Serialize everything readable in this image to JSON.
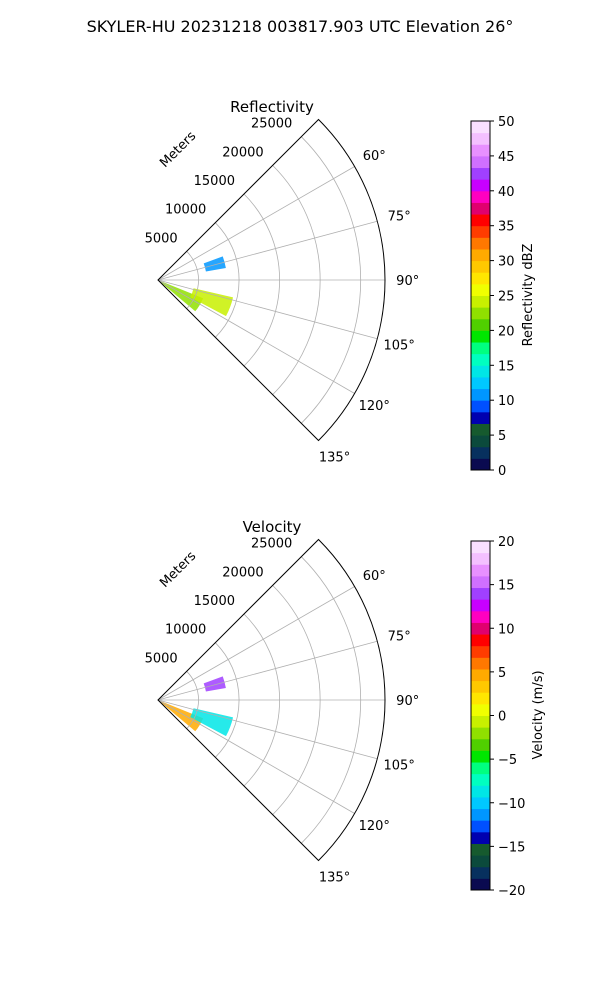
{
  "figure": {
    "suptitle": "SKYLER-HU  20231218  003817.903 UTC Elevation 26°"
  },
  "chart_data": [
    {
      "type": "polar-sector",
      "title": "Reflectivity",
      "radial_label": "Meters",
      "theta_range_deg": [
        45,
        135
      ],
      "r_range": [
        0,
        28000
      ],
      "r_ticks": [
        5000,
        10000,
        15000,
        20000,
        25000
      ],
      "r_tick_labels": [
        "5000",
        "10000",
        "15000",
        "20000",
        "25000"
      ],
      "theta_ticks": [
        60,
        75,
        90,
        105,
        120,
        135
      ],
      "theta_tick_labels": [
        "60°",
        "75°",
        "90°",
        "105°",
        "120°",
        "135°"
      ],
      "grid": true,
      "colorbar": {
        "label": "Reflectivity dBZ",
        "range": [
          0,
          50
        ],
        "ticks": [
          0,
          5,
          10,
          15,
          20,
          25,
          30,
          35,
          40,
          45,
          50
        ],
        "tick_labels": [
          "0",
          "5",
          "10",
          "15",
          "20",
          "25",
          "30",
          "35",
          "40",
          "45",
          "50"
        ],
        "colors": [
          "#0a0a50",
          "#07305e",
          "#0b4a3c",
          "#165a2e",
          "#0000b0",
          "#0050ff",
          "#0096ff",
          "#00c8ff",
          "#00e6e6",
          "#00ffc0",
          "#00ff80",
          "#00e600",
          "#50d000",
          "#90e000",
          "#c8f000",
          "#f0ff00",
          "#ffe600",
          "#ffc800",
          "#ffaa00",
          "#ff7800",
          "#ff3c00",
          "#ff0000",
          "#e0006e",
          "#ff00c0",
          "#c800ff",
          "#a040ff",
          "#d070ff",
          "#e890ff",
          "#f4c0ff",
          "#fae0ff"
        ]
      },
      "echo_regions": [
        {
          "theta_range": [
            112,
            130
          ],
          "r_range": [
            400,
            6000
          ],
          "value": 22
        },
        {
          "theta_range": [
            103,
            118
          ],
          "r_range": [
            4500,
            9500
          ],
          "value": 24
        },
        {
          "theta_range": [
            70,
            80
          ],
          "r_range": [
            6000,
            8500
          ],
          "value": 10
        }
      ]
    },
    {
      "type": "polar-sector",
      "title": "Velocity",
      "radial_label": "Meters",
      "theta_range_deg": [
        45,
        135
      ],
      "r_range": [
        0,
        28000
      ],
      "r_ticks": [
        5000,
        10000,
        15000,
        20000,
        25000
      ],
      "r_tick_labels": [
        "5000",
        "10000",
        "15000",
        "20000",
        "25000"
      ],
      "theta_ticks": [
        60,
        75,
        90,
        105,
        120,
        135
      ],
      "theta_tick_labels": [
        "60°",
        "75°",
        "90°",
        "105°",
        "120°",
        "135°"
      ],
      "grid": true,
      "colorbar": {
        "label": "Velocity (m/s)",
        "range": [
          -20,
          20
        ],
        "ticks": [
          -20,
          -15,
          -10,
          -5,
          0,
          5,
          10,
          15,
          20
        ],
        "tick_labels": [
          "−20",
          "−15",
          "−10",
          "−5",
          "0",
          "5",
          "10",
          "15",
          "20"
        ],
        "colors": [
          "#0a0a50",
          "#07305e",
          "#0b4a3c",
          "#165a2e",
          "#0000b0",
          "#0050ff",
          "#0096ff",
          "#00c8ff",
          "#00e6e6",
          "#00ffc0",
          "#00ff80",
          "#00e600",
          "#50d000",
          "#90e000",
          "#c8f000",
          "#f0ff00",
          "#ffe600",
          "#ffc800",
          "#ffaa00",
          "#ff7800",
          "#ff3c00",
          "#ff0000",
          "#e0006e",
          "#ff00c0",
          "#c800ff",
          "#a040ff",
          "#d070ff",
          "#e890ff",
          "#f4c0ff",
          "#fae0ff"
        ]
      },
      "echo_regions": [
        {
          "theta_range": [
            112,
            130
          ],
          "r_range": [
            400,
            6000
          ],
          "value": 4
        },
        {
          "theta_range": [
            103,
            118
          ],
          "r_range": [
            4500,
            9500
          ],
          "value": -9
        },
        {
          "theta_range": [
            70,
            80
          ],
          "r_range": [
            6000,
            8500
          ],
          "value": 14
        }
      ]
    }
  ]
}
